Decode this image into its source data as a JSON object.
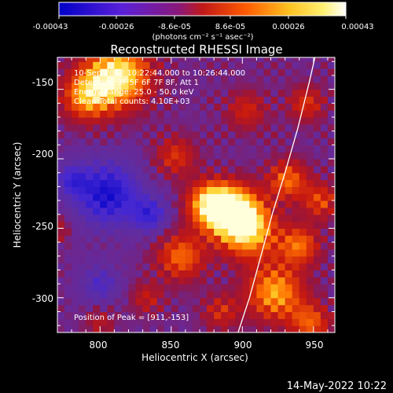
{
  "chart_data": {
    "type": "heatmap",
    "title": "Reconstructed RHESSI Image",
    "xlabel": "Heliocentric X (arcsec)",
    "ylabel": "Heliocentric Y (arcsec)",
    "xlim": [
      770,
      965
    ],
    "ylim": [
      -325,
      -127
    ],
    "xticks": [
      800,
      850,
      900,
      950
    ],
    "yticks": [
      -150,
      -200,
      -250,
      -300
    ],
    "colorbar": {
      "ticks": [
        "-0.00043",
        "-0.00026",
        "-8.6e-05",
        "8.6e-05",
        "0.00026",
        "0.00043"
      ],
      "unit_label": "(photons cm⁻² s⁻¹ asec⁻²)",
      "range": [
        -0.00043,
        0.00043
      ],
      "colors": [
        "#0000c8",
        "#6a1fd0",
        "#c01818",
        "#ff7a00",
        "#ffe030",
        "#ffffff"
      ]
    },
    "annotations": [
      "10-Sep-2012 10:22:44.000 to 10:26:44.000",
      "Detectors: 3F 5F 6F 7F 8F, Att 1",
      "Energy Range: 25.0 - 50.0 keV",
      "Clean    Total counts: 4.10E+03"
    ],
    "peak_text": "Position of Peak = [911,-153]",
    "peak": [
      911,
      -153
    ],
    "limb_curve": [
      [
        897,
        -325
      ],
      [
        905,
        -300
      ],
      [
        913,
        -270
      ],
      [
        921,
        -240
      ],
      [
        930,
        -210
      ],
      [
        939,
        -178
      ],
      [
        947,
        -145
      ],
      [
        951,
        -127
      ]
    ],
    "hotspots": [
      {
        "x": 812,
        "y": -140,
        "sigma": 16,
        "amp": 0.95
      },
      {
        "x": 790,
        "y": -155,
        "sigma": 12,
        "amp": 0.6
      },
      {
        "x": 893,
        "y": -238,
        "sigma": 13,
        "amp": 1.0
      },
      {
        "x": 877,
        "y": -232,
        "sigma": 11,
        "amp": 0.75
      },
      {
        "x": 905,
        "y": -252,
        "sigma": 14,
        "amp": 0.7
      },
      {
        "x": 857,
        "y": -270,
        "sigma": 12,
        "amp": 0.55
      },
      {
        "x": 932,
        "y": -215,
        "sigma": 10,
        "amp": 0.55
      },
      {
        "x": 940,
        "y": -262,
        "sigma": 10,
        "amp": 0.55
      },
      {
        "x": 955,
        "y": -230,
        "sigma": 9,
        "amp": 0.45
      },
      {
        "x": 923,
        "y": -296,
        "sigma": 14,
        "amp": 0.7
      },
      {
        "x": 948,
        "y": -318,
        "sigma": 10,
        "amp": 0.5
      },
      {
        "x": 885,
        "y": -310,
        "sigma": 9,
        "amp": 0.35
      },
      {
        "x": 853,
        "y": -198,
        "sigma": 10,
        "amp": 0.4
      },
      {
        "x": 903,
        "y": -165,
        "sigma": 10,
        "amp": 0.35
      },
      {
        "x": 945,
        "y": -160,
        "sigma": 9,
        "amp": 0.4
      },
      {
        "x": 833,
        "y": -300,
        "sigma": 8,
        "amp": 0.3
      },
      {
        "x": 800,
        "y": -318,
        "sigma": 7,
        "amp": 0.25
      },
      {
        "x": 770,
        "y": -250,
        "sigma": 7,
        "amp": 0.25
      }
    ],
    "coldspots": [
      {
        "x": 805,
        "y": -225,
        "sigma": 16,
        "amp": 0.85
      },
      {
        "x": 835,
        "y": -240,
        "sigma": 9,
        "amp": 0.6
      },
      {
        "x": 780,
        "y": -215,
        "sigma": 8,
        "amp": 0.5
      },
      {
        "x": 800,
        "y": -290,
        "sigma": 9,
        "amp": 0.45
      }
    ]
  },
  "footer": {
    "timestamp": "14-May-2022 10:22"
  }
}
